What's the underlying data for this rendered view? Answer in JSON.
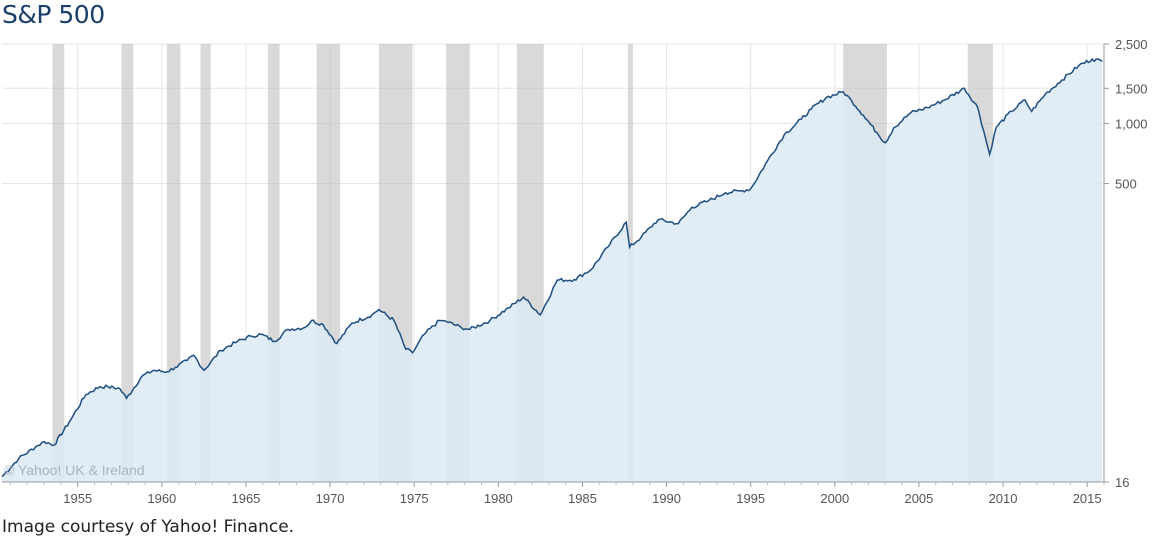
{
  "title": "S&P 500",
  "caption": "Image courtesy of Yahoo! Finance.",
  "watermark": "© Yahoo! UK & Ireland",
  "colors": {
    "line": "#1f4e80",
    "fill": "#dbe9f4",
    "recession": "#b9b9b9",
    "grid": "#e6e6e6",
    "title": "#1a3f6b"
  },
  "chart_data": {
    "type": "area",
    "title": "S&P 500",
    "xlabel": "",
    "ylabel": "",
    "yscale": "log",
    "xlim": [
      1950.5,
      2016.0
    ],
    "ylim": [
      16,
      2500
    ],
    "grid": true,
    "y_ticks": [
      {
        "value": 2500,
        "label": "2,500"
      },
      {
        "value": 1500,
        "label": "1,500"
      },
      {
        "value": 1000,
        "label": "1,000"
      },
      {
        "value": 500,
        "label": "500"
      },
      {
        "value": 16,
        "label": "16"
      }
    ],
    "x_ticks": [
      1955,
      1960,
      1965,
      1970,
      1975,
      1980,
      1985,
      1990,
      1995,
      2000,
      2005,
      2010,
      2015
    ],
    "recessions": [
      [
        1953.5,
        1954.2
      ],
      [
        1957.6,
        1958.3
      ],
      [
        1960.3,
        1961.1
      ],
      [
        1962.3,
        1962.9
      ],
      [
        1966.3,
        1967.0
      ],
      [
        1969.2,
        1970.6
      ],
      [
        1972.9,
        1974.9
      ],
      [
        1976.9,
        1978.3
      ],
      [
        1981.1,
        1982.7
      ],
      [
        1987.7,
        1988.0
      ],
      [
        2000.5,
        2003.1
      ],
      [
        2007.9,
        2009.4
      ]
    ],
    "series": [
      {
        "x": [
          1950.5,
          1951.5,
          1952.5,
          1953.0,
          1953.6,
          1954.5,
          1955.5,
          1956.3,
          1956.8,
          1957.5,
          1957.9,
          1958.8,
          1959.5,
          1960.3,
          1960.8,
          1961.5,
          1961.9,
          1962.5,
          1963.5,
          1964.5,
          1965.3,
          1965.9,
          1966.7,
          1967.5,
          1968.5,
          1968.9,
          1969.6,
          1970.4,
          1971.3,
          1972.5,
          1972.9,
          1973.8,
          1974.5,
          1974.9,
          1975.6,
          1976.5,
          1976.9,
          1977.8,
          1978.3,
          1979.5,
          1980.6,
          1981.5,
          1982.5,
          1983.5,
          1984.5,
          1985.5,
          1986.5,
          1987.6,
          1987.8,
          1988.5,
          1989.5,
          1990.7,
          1991.5,
          1992.5,
          1993.5,
          1994.5,
          1995.0,
          1996.0,
          1997.0,
          1998.0,
          1998.6,
          1999.5,
          2000.5,
          2001.0,
          2001.7,
          2002.5,
          2003.0,
          2003.5,
          2004.5,
          2005.5,
          2006.5,
          2007.7,
          2008.5,
          2009.2,
          2009.6,
          2010.5,
          2011.3,
          2011.7,
          2012.5,
          2013.5,
          2014.5,
          2015.3,
          2015.9
        ],
        "y": [
          17.0,
          21.0,
          24.0,
          25.5,
          24.5,
          32,
          44,
          48,
          48,
          47,
          42,
          54,
          58,
          57,
          60,
          65,
          69,
          58,
          73,
          81,
          86,
          88,
          81,
          93,
          95,
          103,
          98,
          79,
          100,
          110,
          117,
          103,
          74,
          71,
          88,
          103,
          102,
          95,
          93,
          103,
          119,
          135,
          110,
          164,
          165,
          185,
          240,
          320,
          240,
          270,
          330,
          315,
          380,
          410,
          450,
          460,
          470,
          650,
          880,
          1050,
          1180,
          1350,
          1440,
          1300,
          1100,
          900,
          800,
          950,
          1130,
          1200,
          1310,
          1500,
          1200,
          700,
          960,
          1150,
          1310,
          1150,
          1400,
          1650,
          1950,
          2100,
          2050
        ]
      }
    ]
  }
}
